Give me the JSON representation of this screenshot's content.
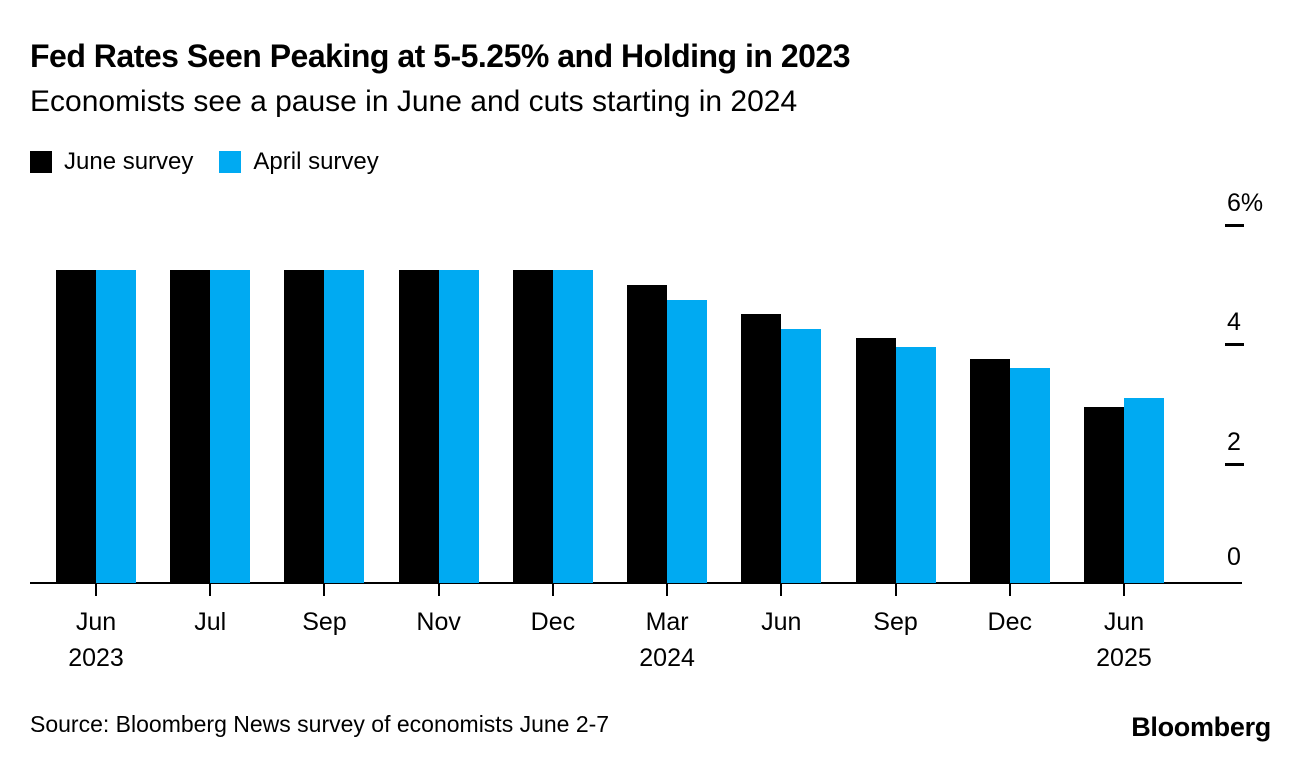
{
  "header": {
    "title": "Fed Rates Seen Peaking at 5-5.25% and Holding in 2023",
    "subtitle": "Economists see a pause in June and cuts starting in 2024"
  },
  "legend": [
    {
      "label": "June survey",
      "color": "#000000"
    },
    {
      "label": "April survey",
      "color": "#00aaf2"
    }
  ],
  "chart_data": {
    "type": "bar",
    "title": "Fed Rates Seen Peaking at 5-5.25% and Holding in 2023",
    "subtitle": "Economists see a pause in June and cuts starting in 2024",
    "categories": [
      {
        "month": "Jun",
        "year": "2023"
      },
      {
        "month": "Jul",
        "year": ""
      },
      {
        "month": "Sep",
        "year": ""
      },
      {
        "month": "Nov",
        "year": ""
      },
      {
        "month": "Dec",
        "year": ""
      },
      {
        "month": "Mar",
        "year": "2024"
      },
      {
        "month": "Jun",
        "year": ""
      },
      {
        "month": "Sep",
        "year": ""
      },
      {
        "month": "Dec",
        "year": ""
      },
      {
        "month": "Jun",
        "year": "2025"
      }
    ],
    "series": [
      {
        "name": "June survey",
        "color": "#000000",
        "values": [
          5.25,
          5.25,
          5.25,
          5.25,
          5.25,
          5.0,
          4.5,
          4.1,
          3.75,
          2.95
        ]
      },
      {
        "name": "April survey",
        "color": "#00aaf2",
        "values": [
          5.25,
          5.25,
          5.25,
          5.25,
          5.25,
          4.75,
          4.25,
          3.95,
          3.6,
          3.1
        ]
      }
    ],
    "ylabel": "%",
    "ylim": [
      0,
      6
    ],
    "yticks": [
      {
        "label": "6%",
        "value": 6
      },
      {
        "label": "4",
        "value": 4
      },
      {
        "label": "2",
        "value": 2
      },
      {
        "label": "0",
        "value": 0
      }
    ],
    "grid": false,
    "legend_position": "top-left",
    "axis_color": "#000000"
  },
  "footer": {
    "source": "Source: Bloomberg News survey of economists June 2-7",
    "brand": "Bloomberg"
  }
}
